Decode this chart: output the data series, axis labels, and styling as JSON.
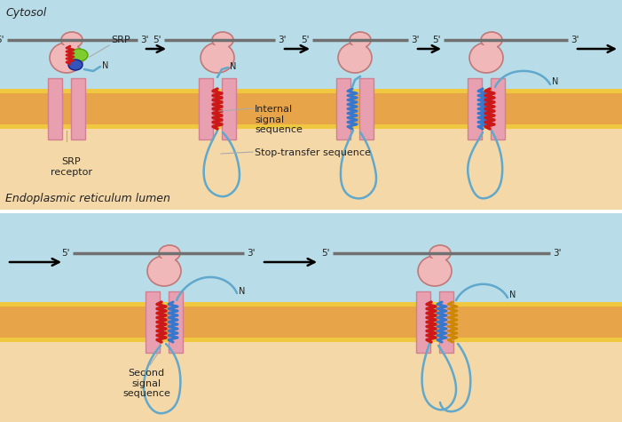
{
  "bg_top": "#b8dce8",
  "bg_bottom": "#f5d8a8",
  "membrane_orange": "#e8a448",
  "membrane_yellow": "#f0c840",
  "membrane_pink": "#e8a0b0",
  "membrane_pink_dark": "#d08090",
  "ribosome_color": "#f0b8b8",
  "ribosome_outline": "#c07878",
  "chain_color": "#60a8cc",
  "chain_lw": 1.8,
  "red_zigzag": "#cc1818",
  "blue_zigzag": "#3878cc",
  "srp_green": "#80cc30",
  "srp_green_dark": "#50aa00",
  "srp_blue": "#3355bb",
  "srp_blue_dark": "#112288",
  "text_color": "#222222",
  "title_top": "Cytosol",
  "label_er": "Endoplasmic reticulum lumen",
  "label_srp_receptor": "SRP\nreceptor",
  "label_srp": "SRP",
  "label_internal": "Internal\nsignal\nsequence",
  "label_stop": "Stop-transfer sequence",
  "label_second": "Second\nsignal\nsequence"
}
